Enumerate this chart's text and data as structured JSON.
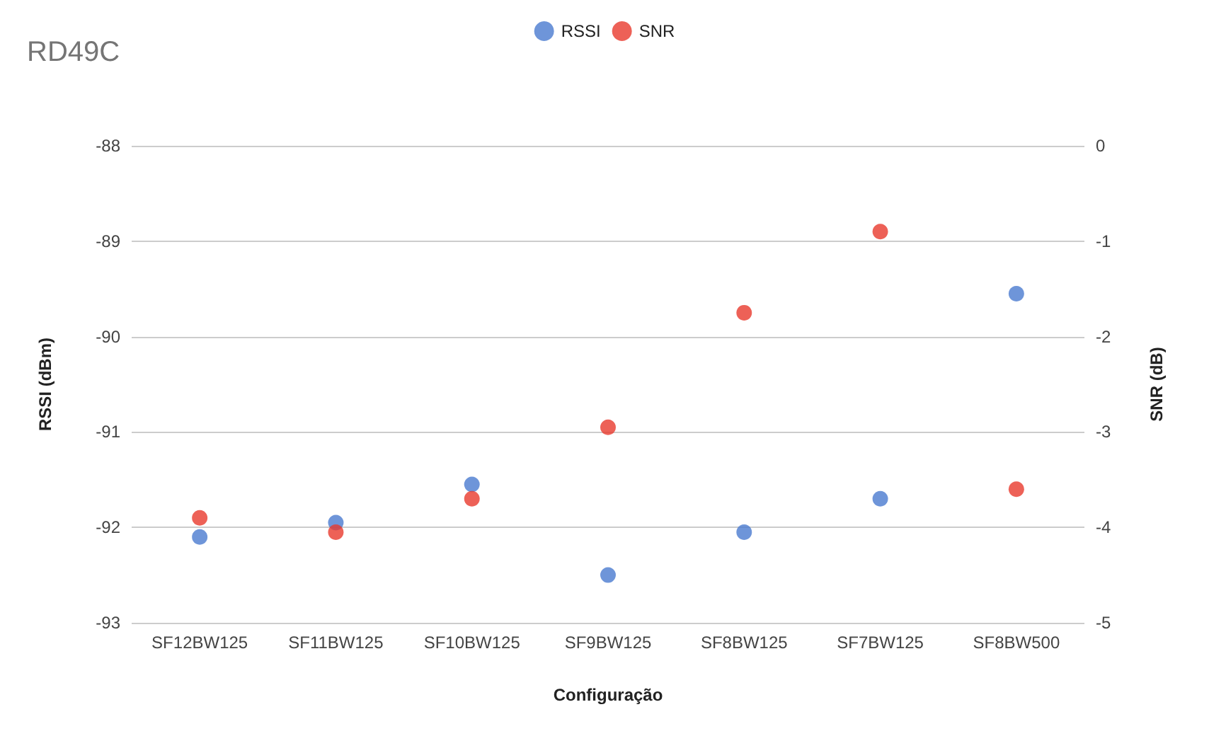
{
  "chart_data": {
    "type": "scatter",
    "title": "RD49C",
    "xlabel": "Configuração",
    "ylabel": "RSSI (dBm)",
    "y2label": "SNR (dB)",
    "categories": [
      "SF12BW125",
      "SF11BW125",
      "SF10BW125",
      "SF9BW125",
      "SF8BW125",
      "SF7BW125",
      "SF8BW500"
    ],
    "series": [
      {
        "name": "RSSI",
        "color": "#4a7bd0",
        "values": [
          -92.1,
          -91.95,
          -91.55,
          -92.5,
          -92.05,
          -91.7,
          -89.55
        ]
      },
      {
        "name": "SNR",
        "color": "#e8392d",
        "axis": "y2",
        "values": [
          -3.9,
          -4.05,
          -3.7,
          -2.95,
          -1.75,
          -0.9,
          -3.6
        ]
      }
    ],
    "ylim": [
      -93,
      -88
    ],
    "yticks": [
      -93,
      -92,
      -91,
      -90,
      -89,
      -88
    ],
    "y2lim": [
      -5,
      0
    ],
    "y2ticks": [
      -5,
      -4,
      -3,
      -2,
      -1,
      0
    ],
    "grid": "y",
    "legend": "top",
    "marker": "circle"
  }
}
